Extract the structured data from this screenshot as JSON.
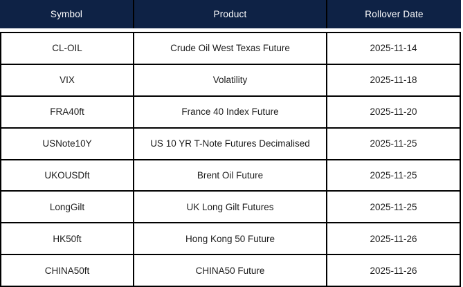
{
  "table": {
    "name": "futures-rollover-schedule",
    "colors": {
      "header_bg": "#0e2245",
      "header_text": "#ffffff",
      "border": "#000000",
      "cell_bg": "#ffffff",
      "cell_text": "#1c1c1c"
    },
    "columns": [
      {
        "label": "Symbol"
      },
      {
        "label": "Product"
      },
      {
        "label": "Rollover Date"
      }
    ],
    "rows": [
      {
        "symbol": "CL-OIL",
        "product": "Crude Oil West Texas Future",
        "rollover_date": "2025-11-14"
      },
      {
        "symbol": "VIX",
        "product": "Volatility",
        "rollover_date": "2025-11-18"
      },
      {
        "symbol": "FRA40ft",
        "product": "France 40 Index Future",
        "rollover_date": "2025-11-20"
      },
      {
        "symbol": "USNote10Y",
        "product": "US 10 YR T-Note Futures Decimalised",
        "rollover_date": "2025-11-25"
      },
      {
        "symbol": "UKOUSDft",
        "product": "Brent Oil Future",
        "rollover_date": "2025-11-25"
      },
      {
        "symbol": "LongGilt",
        "product": "UK Long Gilt Futures",
        "rollover_date": "2025-11-25"
      },
      {
        "symbol": "HK50ft",
        "product": "Hong Kong 50 Future",
        "rollover_date": "2025-11-26"
      },
      {
        "symbol": "CHINA50ft",
        "product": "CHINA50 Future",
        "rollover_date": "2025-11-26"
      }
    ]
  }
}
